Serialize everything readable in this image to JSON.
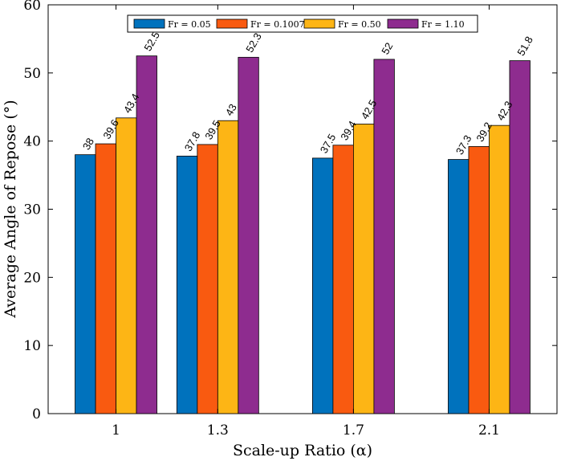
{
  "chart_data": {
    "type": "bar",
    "title": "",
    "xlabel": "Scale-up Ratio (α)",
    "ylabel": "Average Angle of Repose (°)",
    "ylim": [
      0,
      60
    ],
    "yticks": [
      0,
      10,
      20,
      30,
      40,
      50,
      60
    ],
    "x": [
      1,
      1.3,
      1.7,
      2.1
    ],
    "categories": [
      "1",
      "1.3",
      "1.7",
      "2.1"
    ],
    "xlim": [
      0.8,
      2.3
    ],
    "grid": false,
    "legend_position": "top-center",
    "series": [
      {
        "name": "Fr = 0.05",
        "color": "#0072BD",
        "values": [
          38,
          37.8,
          37.5,
          37.3
        ],
        "labels": [
          "38",
          "37.8",
          "37.5",
          "37.3"
        ]
      },
      {
        "name": "Fr = 0.1007",
        "color": "#F95A10",
        "values": [
          39.6,
          39.5,
          39.4,
          39.2
        ],
        "labels": [
          "39.6",
          "39.5",
          "39.4",
          "39.2"
        ]
      },
      {
        "name": "Fr = 0.50",
        "color": "#FDB515",
        "values": [
          43.4,
          43,
          42.5,
          42.3
        ],
        "labels": [
          "43.4",
          "43",
          "42.5",
          "42.3"
        ]
      },
      {
        "name": "Fr = 1.10",
        "color": "#8E2C8F",
        "values": [
          52.5,
          52.3,
          52,
          51.8
        ],
        "labels": [
          "52.5",
          "52.3",
          "52",
          "51.8"
        ]
      }
    ]
  }
}
